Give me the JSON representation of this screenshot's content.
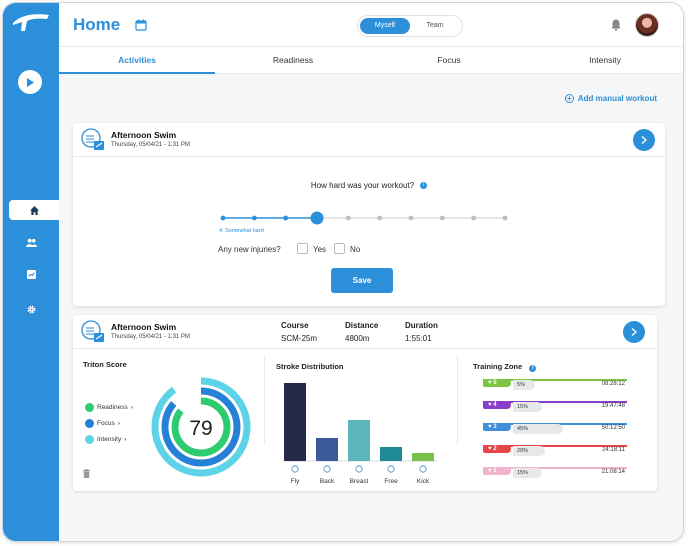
{
  "colors": {
    "accent": "#2b8fd9",
    "readiness": "#2ecc71",
    "focus": "#2680d6",
    "intensity": "#5dd3e8"
  },
  "header": {
    "title": "Home",
    "toggle": [
      "Myself",
      "Team"
    ],
    "toggle_selected": "Myself"
  },
  "tabs": [
    "Activities",
    "Readiness",
    "Focus",
    "Intensity"
  ],
  "add_manual": "Add manual workout",
  "feedback_card": {
    "title": "Afternoon Swim",
    "date": "Thursday, 05/04/21 - 1:31 PM",
    "question": "How hard was your workout?",
    "scale_steps": 10,
    "selected_step": 4,
    "selected_label": "4. Somewhat hard",
    "injury_question": "Any new injuries?",
    "yes": "Yes",
    "no": "No",
    "save": "Save"
  },
  "summary_card": {
    "title": "Afternoon Swim",
    "date": "Thursday, 05/04/21 - 1:31 PM",
    "stats": [
      {
        "key": "Course",
        "value": "SCM-25m"
      },
      {
        "key": "Distance",
        "value": "4800m"
      },
      {
        "key": "Duration",
        "value": "1:55:01"
      }
    ],
    "triton_title": "Triton Score",
    "triton_score": "79",
    "legend": [
      "Readiness",
      "Focus",
      "Intensity"
    ],
    "stroke_title": "Stroke Distribution",
    "training_title": "Training Zone"
  },
  "chart_data": {
    "type": "bar",
    "title": "Stroke Distribution",
    "categories": [
      "Fly",
      "Back",
      "Breast",
      "Free",
      "Kick"
    ],
    "values": [
      78,
      23,
      41,
      14,
      8
    ],
    "colors": [
      "#252a4a",
      "#3c5a9a",
      "#5bb5bb",
      "#1e8a96",
      "#79c14b"
    ]
  },
  "zones": [
    {
      "zone": "5",
      "percent": "5%",
      "time": "08:28:12",
      "color": "#7dc442",
      "fill": 0.05
    },
    {
      "zone": "4",
      "percent": "15%",
      "time": "19:47:48",
      "color": "#8a3dc9",
      "fill": 0.15
    },
    {
      "zone": "3",
      "percent": "45%",
      "time": "50:12:50",
      "color": "#3f8fd9",
      "fill": 0.45
    },
    {
      "zone": "2",
      "percent": "20%",
      "time": "24:18:11",
      "color": "#e8454a",
      "fill": 0.2
    },
    {
      "zone": "1",
      "percent": "15%",
      "time": "21:08:14",
      "color": "#f0b4cf",
      "fill": 0.15
    }
  ]
}
